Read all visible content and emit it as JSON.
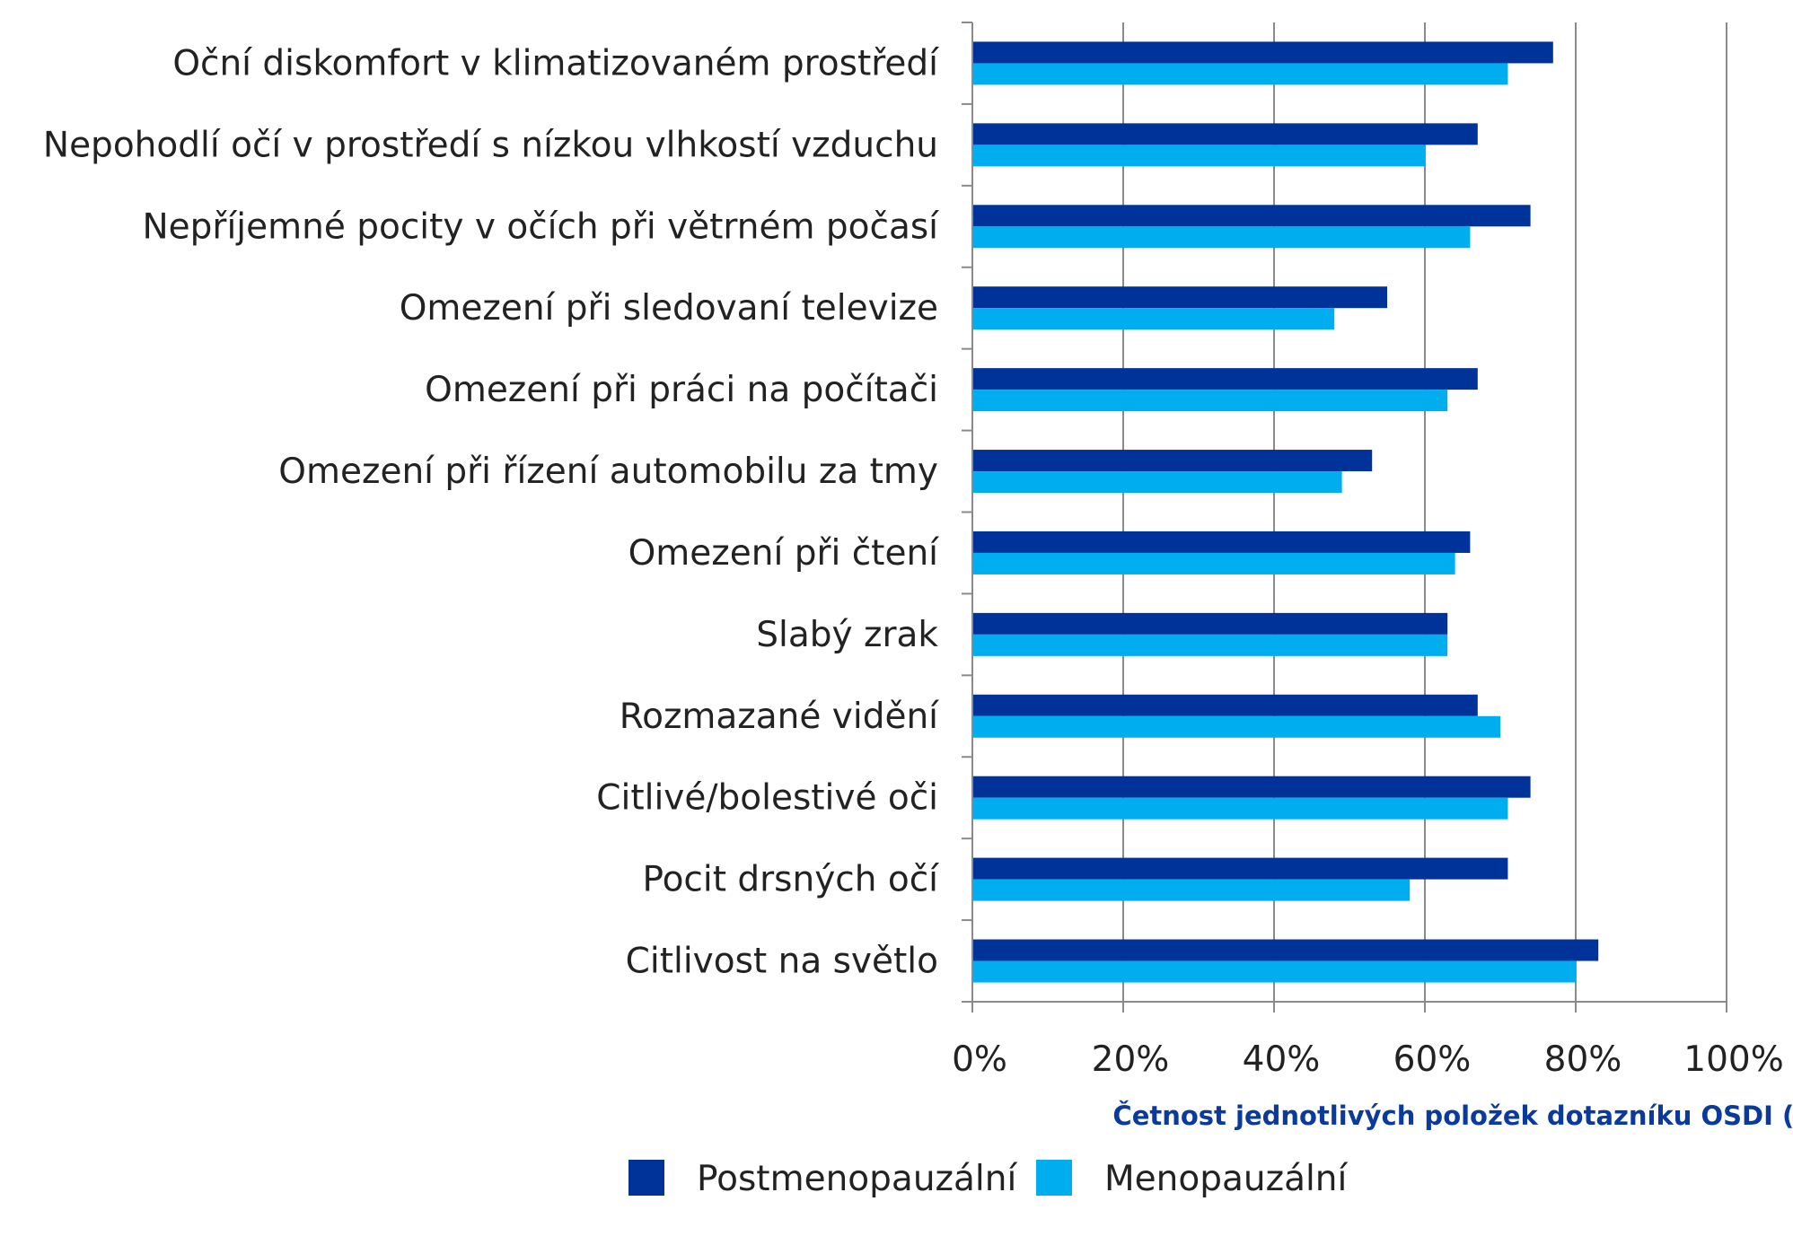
{
  "chart_data": {
    "type": "bar",
    "orientation": "horizontal",
    "categories": [
      "Oční diskomfort v klimatizovaném prostředí",
      "Nepohodlí očí v prostředí s nízkou vlhkostí vzduchu",
      "Nepříjemné pocity v očích při větrném počasí",
      "Omezení při sledovaní televize",
      "Omezení při práci na počítači",
      "Omezení při řízení automobilu za tmy",
      "Omezení při čtení",
      "Slabý zrak",
      "Rozmazané vidění",
      "Citlivé/bolestivé oči",
      "Pocit drsných očí",
      "Citlivost na světlo"
    ],
    "series": [
      {
        "name": "Postmenopauzální",
        "color": "#003399",
        "values": [
          77,
          67,
          74,
          55,
          67,
          53,
          66,
          63,
          67,
          74,
          71,
          83
        ]
      },
      {
        "name": "Menopauzální",
        "color": "#00aeef",
        "values": [
          71,
          60,
          66,
          48,
          63,
          49,
          64,
          63,
          70,
          71,
          58,
          80
        ]
      }
    ],
    "xlim": [
      0,
      100
    ],
    "x_ticks": [
      "0%",
      "20%",
      "40%",
      "60%",
      "80%",
      "100%"
    ],
    "xlabel": "Četnost jednotlivých položek dotazníku OSDI (%)",
    "ylabel": "",
    "title": "",
    "grid": "vertical",
    "legend_position": "bottom"
  }
}
